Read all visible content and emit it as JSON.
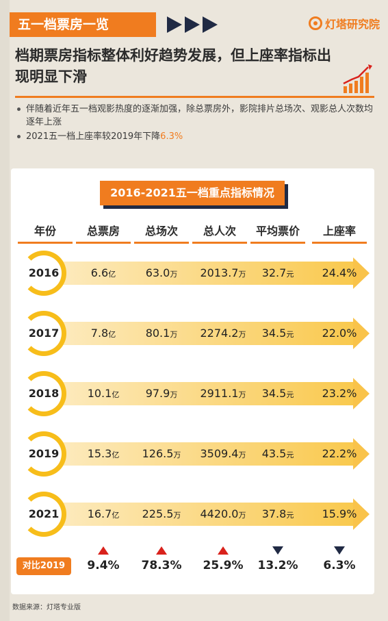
{
  "header": {
    "tag": "五一档票房一览",
    "brand": "灯塔研究院",
    "headline": "档期票房指标整体利好趋势发展，但上座率指标出现明显下滑"
  },
  "bullets": {
    "b1": "伴随着近年五一档观影热度的逐渐加强，除总票房外，影院排片总场次、观影总人次数均逐年上涨",
    "b2_prefix": "2021五一档上座率较2019年下降",
    "b2_value": "6.3%"
  },
  "table": {
    "title": "2016-2021五一档重点指标情况",
    "columns": [
      "年份",
      "总票房",
      "总场次",
      "总人次",
      "平均票价",
      "上座率"
    ],
    "rows": [
      {
        "year": "2016",
        "box": "6.6",
        "box_u": "亿",
        "shows": "63.0",
        "shows_u": "万",
        "people": "2013.7",
        "people_u": "万",
        "price": "32.7",
        "price_u": "元",
        "rate": "24.4%"
      },
      {
        "year": "2017",
        "box": "7.8",
        "box_u": "亿",
        "shows": "80.1",
        "shows_u": "万",
        "people": "2274.2",
        "people_u": "万",
        "price": "34.5",
        "price_u": "元",
        "rate": "22.0%"
      },
      {
        "year": "2018",
        "box": "10.1",
        "box_u": "亿",
        "shows": "97.9",
        "shows_u": "万",
        "people": "2911.1",
        "people_u": "万",
        "price": "34.5",
        "price_u": "元",
        "rate": "23.2%"
      },
      {
        "year": "2019",
        "box": "15.3",
        "box_u": "亿",
        "shows": "126.5",
        "shows_u": "万",
        "people": "3509.4",
        "people_u": "万",
        "price": "43.5",
        "price_u": "元",
        "rate": "22.2%"
      },
      {
        "year": "2021",
        "box": "16.7",
        "box_u": "亿",
        "shows": "225.5",
        "shows_u": "万",
        "people": "4420.0",
        "people_u": "万",
        "price": "37.8",
        "price_u": "元",
        "rate": "15.9%"
      }
    ],
    "compare": {
      "label": "对比2019",
      "values": [
        "9.4%",
        "78.3%",
        "25.9%",
        "13.2%",
        "6.3%"
      ],
      "directions": [
        "up",
        "up",
        "up",
        "down",
        "down"
      ]
    }
  },
  "source": "数据来源：灯塔专业版",
  "colors": {
    "accent": "#f07c1f",
    "navy": "#202a44",
    "gold": "#f7bd1a",
    "up": "#d9221c"
  }
}
